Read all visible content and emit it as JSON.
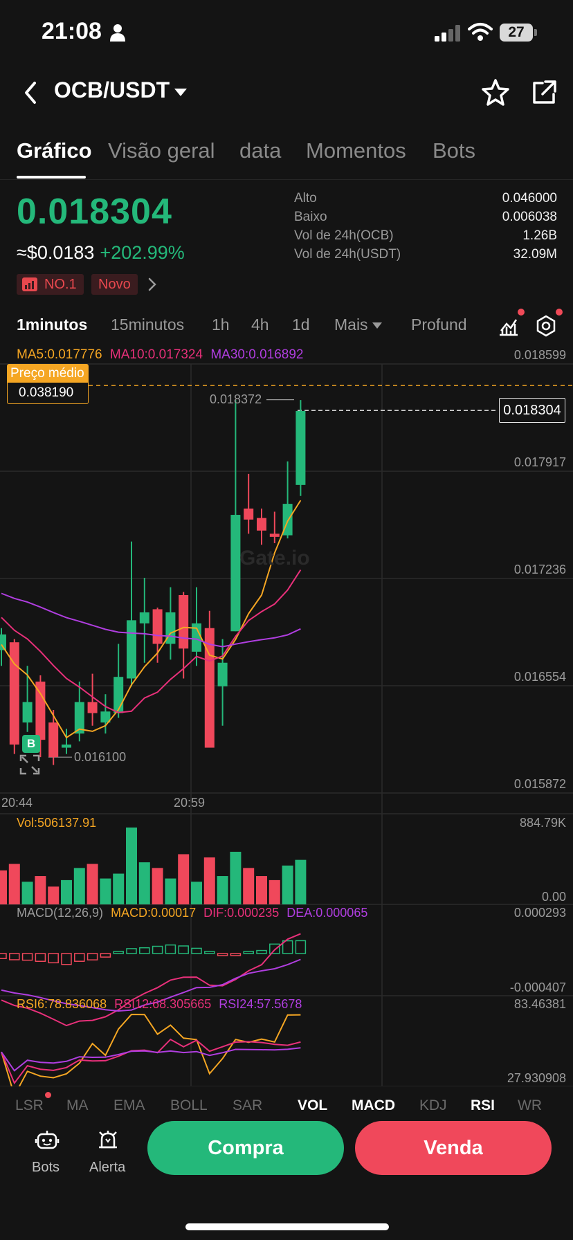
{
  "status_bar": {
    "time": "21:08",
    "battery": "27"
  },
  "header": {
    "pair": "OCB/USDT"
  },
  "tabs": [
    {
      "label": "Gráfico",
      "active": true
    },
    {
      "label": "Visão geral"
    },
    {
      "label": "data"
    },
    {
      "label": "Momentos"
    },
    {
      "label": "Bots"
    }
  ],
  "ticker": {
    "price": "0.018304",
    "usd_price": "≈$0.0183",
    "change": "+202.99%",
    "badges": [
      "NO.1",
      "Novo"
    ],
    "stats": [
      {
        "label": "Alto",
        "value": "0.046000"
      },
      {
        "label": "Baixo",
        "value": "0.006038"
      },
      {
        "label": "Vol de 24h(OCB)",
        "value": "1.26B"
      },
      {
        "label": "Vol de 24h(USDT)",
        "value": "32.09M"
      }
    ]
  },
  "timeframes": [
    {
      "label": "1minutos",
      "active": true
    },
    {
      "label": "15minutos"
    },
    {
      "label": "1h"
    },
    {
      "label": "4h"
    },
    {
      "label": "1d"
    },
    {
      "label": "Mais"
    },
    {
      "label": "Profund"
    }
  ],
  "main_chart": {
    "ma_labels": {
      "ma5": "MA5:0.017776",
      "ma10": "MA10:0.017324",
      "ma30": "MA30:0.016892"
    },
    "price_axis": [
      "0.018599",
      "0.017917",
      "0.017236",
      "0.016554",
      "0.015872"
    ],
    "average_price_label": "Preço médio",
    "average_price_value": "0.038190",
    "current_price": "0.018304",
    "high_marker": "0.018372",
    "low_marker": "0.016100",
    "buy_marker": "B",
    "time_axis": [
      "20:44",
      "20:59"
    ],
    "watermark": "Gate.io"
  },
  "volume": {
    "label": "Vol:506137.91",
    "axis_top": "884.79K",
    "axis_bottom": "0.00"
  },
  "macd": {
    "labels": [
      "MACD(12,26,9)",
      "MACD:0.00017",
      "DIF:0.000235",
      "DEA:0.000065"
    ],
    "axis_top": "0.000293",
    "axis_bottom": "-0.000407"
  },
  "rsi": {
    "labels": [
      "RSI6:78.836068",
      "RSI12:68.305665",
      "RSI24:57.5678"
    ],
    "axis_top": "83.46381",
    "axis_bottom": "27.930908"
  },
  "indicator_tabs": [
    "LSR",
    "MA",
    "EMA",
    "BOLL",
    "SAR",
    "VOL",
    "MACD",
    "KDJ",
    "RSI",
    "WR"
  ],
  "bottom_bar": {
    "bots_label": "Bots",
    "alert_label": "Alerta",
    "buy_label": "Compra",
    "sell_label": "Venda"
  },
  "colors": {
    "up": "#24b87a",
    "down": "#f0485b",
    "ma5": "#f5a623",
    "ma10": "#e8307a",
    "ma30": "#b03ee0"
  },
  "chart_data": {
    "type": "candlestick",
    "time_range": [
      "20:44",
      "20:59"
    ],
    "candles": [
      {
        "open": 0.01678,
        "close": 0.01688,
        "high": 0.01692,
        "low": 0.01668
      },
      {
        "open": 0.01683,
        "close": 0.01618,
        "high": 0.01685,
        "low": 0.01612
      },
      {
        "open": 0.01632,
        "close": 0.01645,
        "high": 0.01668,
        "low": 0.01626
      },
      {
        "open": 0.01658,
        "close": 0.01621,
        "high": 0.01662,
        "low": 0.0161
      },
      {
        "open": 0.01632,
        "close": 0.0161,
        "high": 0.0164,
        "low": 0.01605
      },
      {
        "open": 0.01616,
        "close": 0.01618,
        "high": 0.01628,
        "low": 0.01612
      },
      {
        "open": 0.01625,
        "close": 0.01645,
        "high": 0.01658,
        "low": 0.0162
      },
      {
        "open": 0.01645,
        "close": 0.01638,
        "high": 0.01663,
        "low": 0.0163
      },
      {
        "open": 0.01632,
        "close": 0.01639,
        "high": 0.0165,
        "low": 0.01625
      },
      {
        "open": 0.01638,
        "close": 0.01661,
        "high": 0.01682,
        "low": 0.01635
      },
      {
        "open": 0.0166,
        "close": 0.01697,
        "high": 0.01747,
        "low": 0.01655
      },
      {
        "open": 0.01695,
        "close": 0.01702,
        "high": 0.01724,
        "low": 0.0167
      },
      {
        "open": 0.01704,
        "close": 0.01682,
        "high": 0.01705,
        "low": 0.0167
      },
      {
        "open": 0.01682,
        "close": 0.01702,
        "high": 0.01718,
        "low": 0.01672
      },
      {
        "open": 0.01713,
        "close": 0.01679,
        "high": 0.01715,
        "low": 0.0166
      },
      {
        "open": 0.01677,
        "close": 0.01695,
        "high": 0.01718,
        "low": 0.01668
      },
      {
        "open": 0.01692,
        "close": 0.01616,
        "high": 0.01703,
        "low": 0.01616
      },
      {
        "open": 0.01655,
        "close": 0.0167,
        "high": 0.01685,
        "low": 0.0163
      },
      {
        "open": 0.0169,
        "close": 0.01764,
        "high": 0.01837,
        "low": 0.0169
      },
      {
        "open": 0.01768,
        "close": 0.01761,
        "high": 0.0179,
        "low": 0.01752
      },
      {
        "open": 0.01762,
        "close": 0.01754,
        "high": 0.01768,
        "low": 0.01745
      },
      {
        "open": 0.01752,
        "close": 0.0175,
        "high": 0.01766,
        "low": 0.01746
      },
      {
        "open": 0.01751,
        "close": 0.01771,
        "high": 0.01798,
        "low": 0.01749
      },
      {
        "open": 0.01783,
        "close": 0.0183,
        "high": 0.01837,
        "low": 0.01776
      }
    ],
    "volume": [
      0.42,
      0.5,
      0.28,
      0.35,
      0.22,
      0.3,
      0.45,
      0.5,
      0.32,
      0.38,
      0.95,
      0.52,
      0.45,
      0.32,
      0.62,
      0.28,
      0.58,
      0.35,
      0.65,
      0.45,
      0.35,
      0.3,
      0.48,
      0.55
    ],
    "volume_up": [
      false,
      false,
      true,
      false,
      false,
      true,
      true,
      false,
      true,
      true,
      true,
      true,
      false,
      true,
      false,
      true,
      false,
      true,
      true,
      false,
      false,
      false,
      true,
      true
    ]
  }
}
